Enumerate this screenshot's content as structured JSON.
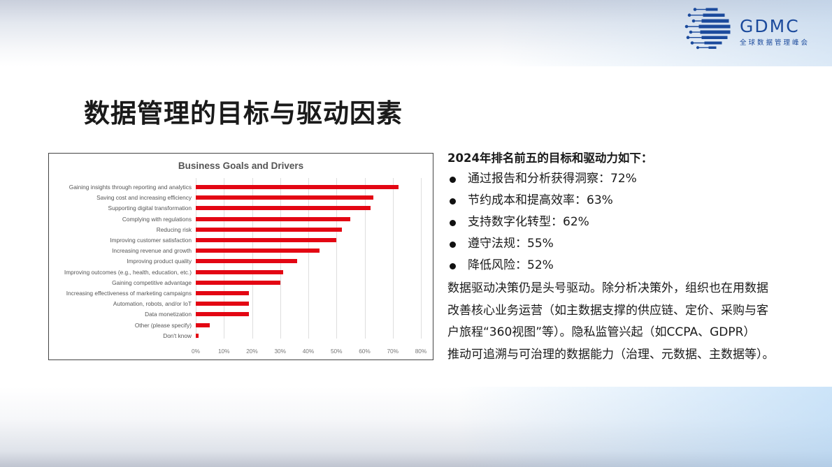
{
  "header": {
    "logo": {
      "name": "GDMC",
      "subtitle": "全球数据管理峰会",
      "color": "#1b4a9c"
    }
  },
  "page_title": "数据管理的目标与驱动因素",
  "summary": {
    "heading": "2024年排名前五的目标和驱动力如下：",
    "bullets": [
      {
        "label": "通过报告和分析获得洞察：72%"
      },
      {
        "label": "节约成本和提高效率：63%"
      },
      {
        "label": "支持数字化转型：62%"
      },
      {
        "label": "遵守法规：55%"
      },
      {
        "label": "降低风险：52%"
      }
    ],
    "paragraph_lines": [
      "数据驱动决策仍是头号驱动。除分析决策外，组织也在用数据",
      "改善核心业务运营（如主数据支撑的供应链、定价、采购与客",
      "户旅程“360视图”等）。隐私监管兴起（如CCPA、GDPR）",
      "推动可追溯与可治理的数据能力（治理、元数据、主数据等）。"
    ]
  },
  "chart_data": {
    "type": "bar",
    "orientation": "horizontal",
    "title": "Business Goals and Drivers",
    "xlabel": "",
    "ylabel": "",
    "xlim": [
      0,
      80
    ],
    "grid": true,
    "legend": "none",
    "bar_color": "#e30613",
    "x_ticks": [
      "0%",
      "10%",
      "20%",
      "30%",
      "40%",
      "50%",
      "60%",
      "70%",
      "80%"
    ],
    "categories": [
      "Gaining insights through reporting and analytics",
      "Saving cost and increasing efficiency",
      "Supporting digital transformation",
      "Complying with regulations",
      "Reducing risk",
      "Improving customer satisfaction",
      "Increasing revenue and growth",
      "Improving product quality",
      "Improving outcomes (e.g., health, education, etc.)",
      "Gaining competitive advantage",
      "Increasing effectiveness of marketing campaigns",
      "Automation, robots, and/or IoT",
      "Data monetization",
      "Other (please specify)",
      "Don't know"
    ],
    "values": [
      72,
      63,
      62,
      55,
      52,
      50,
      44,
      36,
      31,
      30,
      19,
      19,
      19,
      5,
      1
    ]
  }
}
